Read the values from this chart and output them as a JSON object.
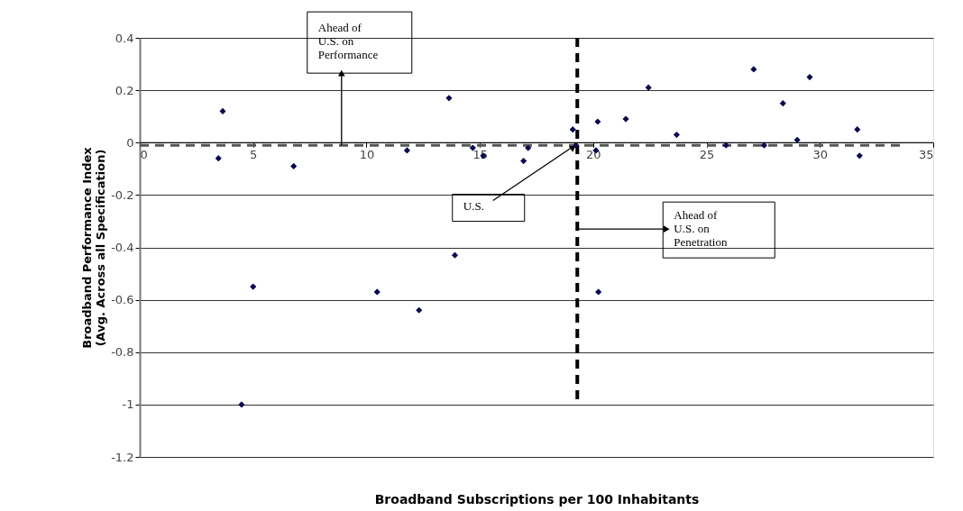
{
  "chart_data": {
    "type": "scatter",
    "xlabel": "Broadband Subscriptions per 100 Inhabitants",
    "ylabel": "Broadband Performance Index\n(Avg. Across all Specification)",
    "x": [
      3.66,
      3.47,
      4.49,
      5.0,
      6.79,
      10.47,
      11.79,
      12.32,
      13.64,
      13.9,
      14.69,
      15.15,
      16.93,
      17.13,
      19.1,
      19.24,
      20.12,
      20.2,
      20.23,
      21.44,
      22.44,
      23.68,
      25.86,
      27.08,
      27.54,
      28.37,
      29.0,
      29.55,
      31.65,
      31.75
    ],
    "series": [
      {
        "color": "#0a0a50",
        "values": [
          0.12,
          -0.06,
          -1.0,
          -0.55,
          -0.09,
          -0.57,
          -0.03,
          -0.64,
          0.17,
          -0.43,
          -0.02,
          -0.05,
          -0.07,
          -0.02,
          0.05,
          -0.01,
          -0.03,
          0.08,
          -0.57,
          0.09,
          0.21,
          0.03,
          -0.01,
          0.28,
          -0.01,
          0.15,
          0.01,
          0.25,
          0.05,
          -0.05
        ]
      }
    ],
    "marker": "diamond",
    "xlim": [
      0,
      35
    ],
    "xticks": [
      0,
      5,
      10,
      15,
      20,
      25,
      30,
      35
    ],
    "ylim": [
      -1.2,
      0.4
    ],
    "yticks": [
      -1.2,
      {
        "value": -1,
        "label": "-1"
      },
      -0.8,
      -0.6,
      -0.4,
      -0.2,
      {
        "value": 0,
        "label": "0"
      },
      0.2,
      0.4
    ],
    "grid": "y",
    "legend": false,
    "ref_lines": [
      {
        "axis": "y",
        "value": -0.01,
        "color": "#555555",
        "line_style": "dashed"
      },
      {
        "axis": "x",
        "value": 19.3,
        "color": "#000000",
        "line_style": "dashed"
      }
    ],
    "annotations": [
      {
        "text": "Ahead of\nU.S. on\nPerformance",
        "x": 8.9,
        "y": -0.01
      },
      {
        "text": "U.S.",
        "x": 19.24,
        "y": -0.008
      },
      {
        "text": "Ahead of\nU.S. on\nPenetration",
        "x": 19.3,
        "y": -0.33
      }
    ]
  }
}
